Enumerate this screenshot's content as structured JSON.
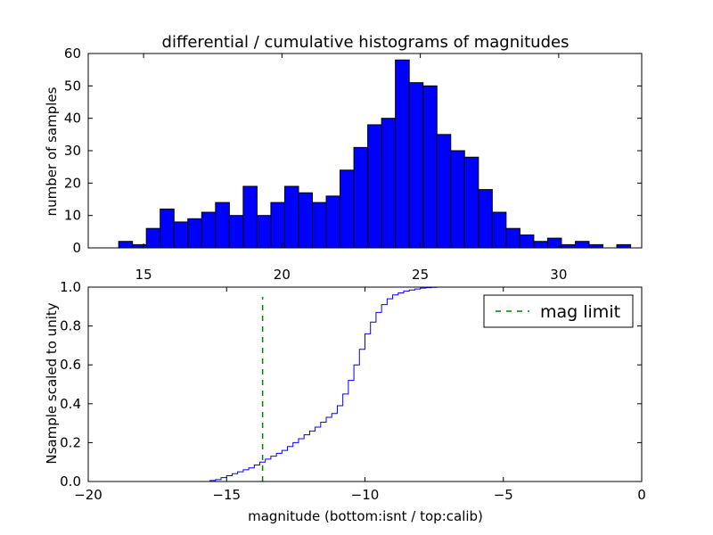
{
  "chart_data": [
    {
      "type": "bar",
      "title": "differential / cumulative histograms of magnitudes",
      "xlabel": "",
      "ylabel": "number of samples",
      "xlim": [
        13,
        33
      ],
      "ylim": [
        0,
        60
      ],
      "bar_color": "#0000ff",
      "edge_color": "#000000",
      "bin_edges": [
        14.1,
        14.6,
        15.1,
        15.6,
        16.1,
        16.6,
        17.1,
        17.6,
        18.1,
        18.6,
        19.1,
        19.6,
        20.1,
        20.6,
        21.1,
        21.6,
        22.1,
        22.6,
        23.1,
        23.6,
        24.1,
        24.6,
        25.1,
        25.6,
        26.1,
        26.6,
        27.1,
        27.6,
        28.1,
        28.6,
        29.1,
        29.6,
        30.1,
        30.6,
        31.1,
        31.6,
        32.1,
        32.6
      ],
      "values": [
        2,
        1,
        6,
        12,
        8,
        9,
        11,
        14,
        10,
        19,
        10,
        14,
        19,
        17,
        14,
        16,
        24,
        31,
        38,
        40,
        58,
        51,
        50,
        35,
        30,
        28,
        18,
        11,
        6,
        4,
        2,
        3,
        1,
        2,
        1,
        0,
        1
      ],
      "xticks": [
        15,
        20,
        25,
        30
      ],
      "yticks": [
        0,
        10,
        20,
        30,
        40,
        50,
        60
      ]
    },
    {
      "type": "line",
      "title": "",
      "xlabel": "magnitude (bottom:isnt / top:calib)",
      "ylabel": "Nsample scaled to unity",
      "xlim": [
        -20,
        0
      ],
      "ylim": [
        0,
        1.0
      ],
      "xticks": [
        -20,
        -15,
        -10,
        -5,
        0
      ],
      "xtick_labels": [
        "−20",
        "−15",
        "−10",
        "−5",
        "0"
      ],
      "yticks": [
        0.0,
        0.2,
        0.4,
        0.6,
        0.8,
        1.0
      ],
      "ytick_labels": [
        "0.0",
        "0.2",
        "0.4",
        "0.6",
        "0.8",
        "1.0"
      ],
      "series": [
        {
          "name": "cumulative",
          "style": "step",
          "color": "#0000ff",
          "x": [
            -20,
            -15.9,
            -15.6,
            -15.4,
            -15.2,
            -15.0,
            -14.8,
            -14.6,
            -14.4,
            -14.2,
            -14.0,
            -13.8,
            -13.6,
            -13.4,
            -13.2,
            -13.0,
            -12.8,
            -12.6,
            -12.4,
            -12.2,
            -12.0,
            -11.8,
            -11.6,
            -11.4,
            -11.2,
            -11.0,
            -10.8,
            -10.6,
            -10.4,
            -10.2,
            -10.0,
            -9.8,
            -9.6,
            -9.4,
            -9.2,
            -9.0,
            -8.8,
            -8.6,
            -8.4,
            -8.2,
            -8.0,
            -7.8,
            -7.6,
            -7.4,
            -7.2,
            0
          ],
          "y": [
            0,
            0.0,
            0.005,
            0.01,
            0.02,
            0.03,
            0.04,
            0.05,
            0.06,
            0.07,
            0.085,
            0.1,
            0.115,
            0.13,
            0.145,
            0.16,
            0.18,
            0.2,
            0.22,
            0.24,
            0.26,
            0.28,
            0.305,
            0.33,
            0.35,
            0.39,
            0.45,
            0.52,
            0.6,
            0.68,
            0.76,
            0.82,
            0.87,
            0.91,
            0.94,
            0.96,
            0.97,
            0.98,
            0.985,
            0.99,
            0.995,
            0.997,
            0.999,
            1.0,
            1.0,
            1.0
          ]
        },
        {
          "name": "mag limit",
          "style": "dashed",
          "color": "#008000",
          "x": [
            -13.7,
            -13.7
          ],
          "y": [
            0,
            0.95
          ]
        }
      ],
      "legend": {
        "entries": [
          "mag limit"
        ],
        "placement": "upper-right"
      }
    }
  ]
}
